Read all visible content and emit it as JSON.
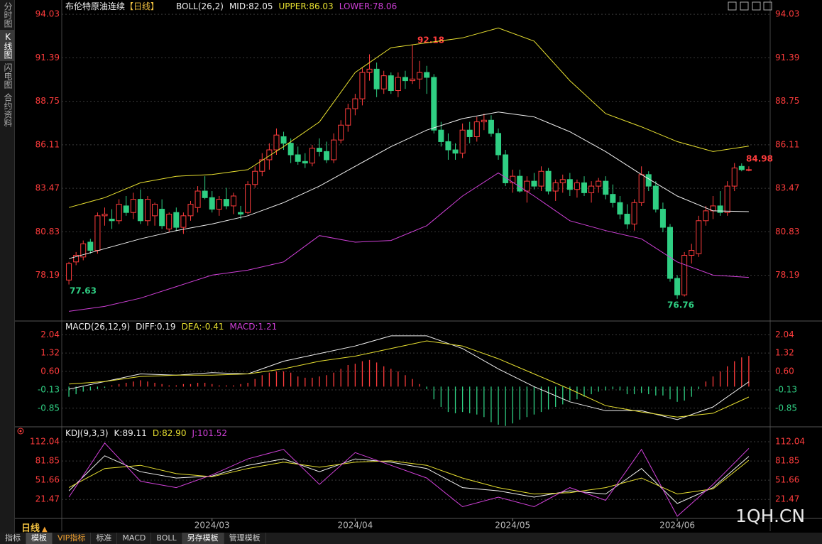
{
  "sidebar": {
    "tabs": [
      "分时图",
      "K线图",
      "闪电图",
      "合约资料"
    ]
  },
  "period_label": "日线",
  "toolbar": {
    "tabs": [
      "指标",
      "模板",
      "VIP指标",
      "标准",
      "MACD",
      "BOLL",
      "另存模板",
      "管理模板"
    ]
  },
  "watermark": "1QH.CN",
  "chart_data": [
    {
      "type": "candlestick",
      "title": "布伦特原油连续",
      "period": "【日线】",
      "indicator": "BOLL(26,2)",
      "up_color": "#ff3c3c",
      "down_color": "#2fcf83",
      "grid": true,
      "xlim": [
        -1,
        96.3
      ],
      "ylim": [
        75.5,
        94.25
      ],
      "yticks": [
        78.19,
        80.83,
        83.47,
        86.11,
        88.75,
        91.39,
        94.03
      ],
      "candles": [
        [
          77.9,
          79.0,
          77.63,
          78.9
        ],
        [
          79.0,
          79.6,
          78.8,
          79.4
        ],
        [
          79.3,
          80.3,
          79.1,
          80.1
        ],
        [
          80.2,
          80.4,
          79.5,
          79.7
        ],
        [
          79.7,
          82.0,
          79.5,
          81.8
        ],
        [
          81.8,
          82.3,
          81.2,
          81.9
        ],
        [
          81.6,
          82.2,
          81.0,
          81.5
        ],
        [
          81.5,
          82.8,
          81.3,
          82.5
        ],
        [
          82.4,
          83.0,
          81.8,
          82.0
        ],
        [
          82.0,
          83.2,
          81.6,
          82.8
        ],
        [
          82.8,
          83.4,
          81.3,
          81.5
        ],
        [
          81.5,
          83.0,
          81.2,
          82.8
        ],
        [
          81.8,
          82.6,
          81.2,
          82.5
        ],
        [
          82.2,
          82.8,
          81.0,
          81.2
        ],
        [
          81.0,
          82.0,
          80.8,
          81.9
        ],
        [
          82.0,
          82.3,
          80.9,
          81.1
        ],
        [
          81.1,
          82.0,
          80.7,
          81.8
        ],
        [
          81.8,
          82.7,
          81.5,
          82.5
        ],
        [
          82.3,
          83.6,
          82.0,
          83.3
        ],
        [
          83.3,
          84.2,
          82.8,
          82.9
        ],
        [
          82.9,
          83.3,
          82.0,
          82.2
        ],
        [
          82.2,
          83.0,
          81.8,
          82.8
        ],
        [
          82.8,
          83.5,
          82.2,
          82.4
        ],
        [
          82.4,
          83.2,
          81.9,
          83.0
        ],
        [
          82.0,
          82.4,
          81.6,
          81.9
        ],
        [
          82.0,
          83.9,
          81.9,
          83.7
        ],
        [
          83.7,
          84.8,
          83.5,
          84.5
        ],
        [
          84.5,
          85.6,
          84.2,
          85.2
        ],
        [
          85.2,
          86.2,
          84.6,
          85.8
        ],
        [
          85.8,
          87.1,
          85.5,
          86.7
        ],
        [
          86.6,
          86.9,
          85.8,
          86.2
        ],
        [
          86.2,
          86.5,
          85.0,
          85.5
        ],
        [
          85.5,
          86.0,
          84.9,
          85.1
        ],
        [
          85.1,
          85.6,
          84.7,
          85.0
        ],
        [
          85.0,
          86.1,
          84.8,
          85.9
        ],
        [
          85.9,
          86.5,
          85.4,
          85.7
        ],
        [
          85.7,
          86.3,
          85.0,
          85.2
        ],
        [
          85.2,
          86.8,
          85.0,
          86.4
        ],
        [
          86.4,
          87.6,
          86.2,
          87.3
        ],
        [
          87.3,
          88.6,
          86.9,
          88.3
        ],
        [
          88.3,
          89.2,
          87.9,
          88.9
        ],
        [
          88.9,
          90.8,
          88.5,
          90.5
        ],
        [
          90.5,
          91.6,
          90.0,
          90.7
        ],
        [
          90.7,
          91.1,
          89.0,
          89.5
        ],
        [
          89.5,
          90.6,
          89.2,
          90.3
        ],
        [
          90.3,
          90.5,
          89.2,
          89.4
        ],
        [
          89.4,
          90.5,
          89.0,
          90.2
        ],
        [
          90.2,
          90.6,
          89.5,
          90.0
        ],
        [
          90.0,
          92.18,
          89.8,
          90.1
        ],
        [
          90.1,
          91.2,
          89.5,
          90.5
        ],
        [
          90.5,
          90.9,
          89.2,
          90.2
        ],
        [
          90.2,
          90.4,
          86.8,
          87.0
        ],
        [
          87.0,
          87.5,
          86.0,
          86.3
        ],
        [
          86.3,
          86.8,
          85.2,
          85.8
        ],
        [
          85.8,
          86.2,
          85.2,
          85.6
        ],
        [
          85.6,
          87.4,
          85.3,
          87.0
        ],
        [
          87.0,
          87.5,
          86.2,
          86.6
        ],
        [
          86.6,
          87.8,
          86.3,
          87.5
        ],
        [
          87.5,
          88.0,
          87.0,
          87.6
        ],
        [
          87.6,
          87.9,
          86.6,
          86.8
        ],
        [
          86.8,
          87.1,
          85.2,
          85.5
        ],
        [
          85.5,
          85.8,
          83.6,
          83.8
        ],
        [
          83.8,
          84.6,
          83.2,
          84.2
        ],
        [
          84.2,
          84.6,
          83.2,
          83.3
        ],
        [
          83.3,
          84.2,
          82.6,
          83.9
        ],
        [
          83.9,
          84.4,
          83.4,
          83.6
        ],
        [
          83.6,
          84.8,
          83.3,
          84.5
        ],
        [
          84.5,
          84.7,
          83.1,
          83.3
        ],
        [
          83.3,
          84.0,
          82.7,
          83.8
        ],
        [
          83.8,
          84.3,
          83.2,
          84.0
        ],
        [
          84.0,
          84.4,
          83.0,
          83.4
        ],
        [
          83.4,
          84.0,
          82.9,
          83.8
        ],
        [
          83.8,
          84.2,
          83.0,
          83.2
        ],
        [
          83.2,
          83.9,
          82.6,
          83.6
        ],
        [
          83.6,
          84.1,
          83.2,
          83.9
        ],
        [
          83.9,
          84.2,
          82.8,
          83.1
        ],
        [
          83.1,
          83.7,
          82.3,
          82.6
        ],
        [
          82.6,
          83.0,
          81.6,
          81.9
        ],
        [
          81.9,
          82.5,
          81.0,
          81.3
        ],
        [
          81.3,
          82.8,
          80.9,
          82.6
        ],
        [
          82.6,
          84.8,
          82.4,
          84.3
        ],
        [
          84.3,
          84.5,
          83.3,
          83.6
        ],
        [
          83.6,
          83.9,
          82.0,
          82.2
        ],
        [
          82.2,
          82.6,
          80.8,
          81.1
        ],
        [
          81.1,
          81.3,
          77.8,
          78.0
        ],
        [
          78.0,
          78.2,
          76.76,
          77.0
        ],
        [
          77.0,
          79.6,
          76.9,
          79.4
        ],
        [
          79.4,
          80.1,
          78.9,
          79.7
        ],
        [
          79.5,
          81.8,
          79.3,
          81.5
        ],
        [
          81.5,
          82.4,
          81.2,
          82.1
        ],
        [
          82.1,
          83.0,
          81.6,
          82.4
        ],
        [
          82.4,
          83.3,
          81.8,
          82.0
        ],
        [
          82.0,
          83.9,
          81.8,
          83.6
        ],
        [
          83.6,
          85.0,
          83.3,
          84.7
        ],
        [
          84.8,
          84.98,
          84.5,
          84.6
        ],
        [
          84.6,
          84.8,
          84.5,
          84.6
        ]
      ],
      "line_x": [
        0,
        5,
        10,
        15,
        20,
        25,
        30,
        35,
        40,
        45,
        50,
        55,
        60,
        65,
        70,
        75,
        80,
        85,
        90,
        95
      ],
      "series": [
        {
          "label": "MID:82.05",
          "color": "#f0f0f0",
          "values": [
            79.2,
            79.8,
            80.4,
            80.9,
            81.3,
            81.8,
            82.6,
            83.6,
            84.8,
            86.0,
            87.0,
            87.7,
            88.1,
            87.8,
            86.9,
            85.7,
            84.3,
            83.0,
            82.1,
            82.05
          ]
        },
        {
          "label": "UPPER:86.03",
          "color": "#e8e030",
          "values": [
            82.3,
            82.9,
            83.8,
            84.2,
            84.3,
            84.6,
            86.0,
            87.5,
            90.5,
            92.0,
            92.3,
            92.6,
            93.2,
            92.4,
            90.0,
            88.0,
            87.2,
            86.3,
            85.7,
            86.03
          ]
        },
        {
          "label": "LOWER:78.06",
          "color": "#d040d8",
          "values": [
            76.0,
            76.3,
            76.8,
            77.5,
            78.2,
            78.5,
            79.0,
            80.6,
            80.2,
            80.3,
            81.2,
            83.0,
            84.4,
            83.0,
            81.5,
            80.9,
            80.4,
            79.0,
            78.2,
            78.06
          ]
        }
      ],
      "annotations": [
        {
          "text": "92.18",
          "color": "#ff3c3c"
        },
        {
          "text": "84.98",
          "color": "#ff3c3c"
        },
        {
          "text": "77.63",
          "color": "#2fcf83"
        },
        {
          "text": "76.76",
          "color": "#2fcf83"
        }
      ]
    },
    {
      "type": "combo",
      "indicator": "MACD(26,12,9)",
      "up_color": "#ff3c3c",
      "down_color": "#2fcf83",
      "grid": true,
      "xlim": [
        -1,
        96.3
      ],
      "ylim": [
        -1.5,
        2.5
      ],
      "yticks": [
        -0.85,
        -0.13,
        {
          "value": 0.6,
          "label": "0.60"
        },
        1.32,
        2.04
      ],
      "line_x": [
        0,
        5,
        10,
        15,
        20,
        25,
        30,
        35,
        40,
        45,
        50,
        55,
        60,
        65,
        70,
        75,
        80,
        85,
        90,
        95
      ],
      "series": [
        {
          "label": "DIFF:0.19",
          "color": "#f0f0f0",
          "values": [
            -0.1,
            0.2,
            0.5,
            0.45,
            0.55,
            0.5,
            1.0,
            1.3,
            1.6,
            2.0,
            2.0,
            1.5,
            0.7,
            0.0,
            -0.6,
            -0.95,
            -0.95,
            -1.3,
            -0.8,
            0.19
          ]
        },
        {
          "label": "DEA:-0.41",
          "color": "#e8e030",
          "values": [
            0.1,
            0.2,
            0.4,
            0.45,
            0.45,
            0.5,
            0.7,
            1.0,
            1.2,
            1.5,
            1.8,
            1.6,
            1.1,
            0.5,
            -0.1,
            -0.75,
            -1.0,
            -1.2,
            -1.05,
            -0.41
          ]
        }
      ],
      "bars": {
        "label": "MACD:1.21",
        "color": "#d040d8",
        "values": [
          -0.4,
          -0.3,
          -0.2,
          -0.15,
          -0.1,
          -0.05,
          0.05,
          0.1,
          0.15,
          0.2,
          0.25,
          0.2,
          0.15,
          0.1,
          0.05,
          0.05,
          0.1,
          0.1,
          0.15,
          0.15,
          0.1,
          0.05,
          0.05,
          0.05,
          0.1,
          0.15,
          0.3,
          0.45,
          0.55,
          0.6,
          0.6,
          0.55,
          0.4,
          0.35,
          0.35,
          0.4,
          0.45,
          0.55,
          0.7,
          0.85,
          0.9,
          1.0,
          1.05,
          0.95,
          0.8,
          0.7,
          0.6,
          0.45,
          0.3,
          0.1,
          -0.1,
          -0.5,
          -0.8,
          -1.0,
          -1.05,
          -1.0,
          -1.05,
          -1.1,
          -1.2,
          -1.4,
          -1.5,
          -1.55,
          -1.45,
          -1.3,
          -1.2,
          -1.1,
          -1.0,
          -0.9,
          -0.8,
          -0.7,
          -0.55,
          -0.5,
          -0.4,
          -0.3,
          -0.2,
          -0.15,
          -0.1,
          -0.15,
          -0.3,
          -0.3,
          -0.25,
          -0.3,
          -0.35,
          -0.35,
          -0.5,
          -0.6,
          -0.55,
          -0.4,
          -0.1,
          0.2,
          0.4,
          0.6,
          0.8,
          1.0,
          1.15,
          1.21
        ]
      }
    },
    {
      "type": "line",
      "indicator": "KDJ(9,3,3)",
      "up_color": "#ff3c3c",
      "down_color": "#2fcf83",
      "grid": true,
      "xlim": [
        -1,
        96.3
      ],
      "ylim": [
        -14,
        131
      ],
      "yticks": [
        21.47,
        51.66,
        81.85,
        112.04
      ],
      "xticks": [
        {
          "value": 20,
          "label": "2024/03"
        },
        {
          "value": 40,
          "label": "2024/04"
        },
        {
          "value": 62,
          "label": "2024/05"
        },
        {
          "value": 85,
          "label": "2024/06"
        }
      ],
      "line_x": [
        0,
        5,
        10,
        15,
        20,
        25,
        30,
        35,
        40,
        45,
        50,
        55,
        60,
        65,
        70,
        75,
        80,
        85,
        90,
        95
      ],
      "series": [
        {
          "label": "K:89.11",
          "color": "#f0f0f0",
          "values": [
            35,
            90,
            65,
            55,
            58,
            75,
            85,
            65,
            85,
            80,
            70,
            40,
            35,
            25,
            35,
            30,
            70,
            15,
            40,
            89.11
          ]
        },
        {
          "label": "D:82.90",
          "color": "#e8e030",
          "values": [
            40,
            70,
            75,
            62,
            57,
            70,
            80,
            72,
            80,
            82,
            75,
            55,
            40,
            30,
            32,
            40,
            55,
            30,
            38,
            82.9
          ]
        },
        {
          "label": "J:101.52",
          "color": "#d040d8",
          "values": [
            25,
            110,
            50,
            40,
            60,
            85,
            100,
            45,
            95,
            75,
            55,
            10,
            25,
            10,
            40,
            20,
            100,
            -5,
            45,
            101.52
          ]
        }
      ]
    }
  ]
}
